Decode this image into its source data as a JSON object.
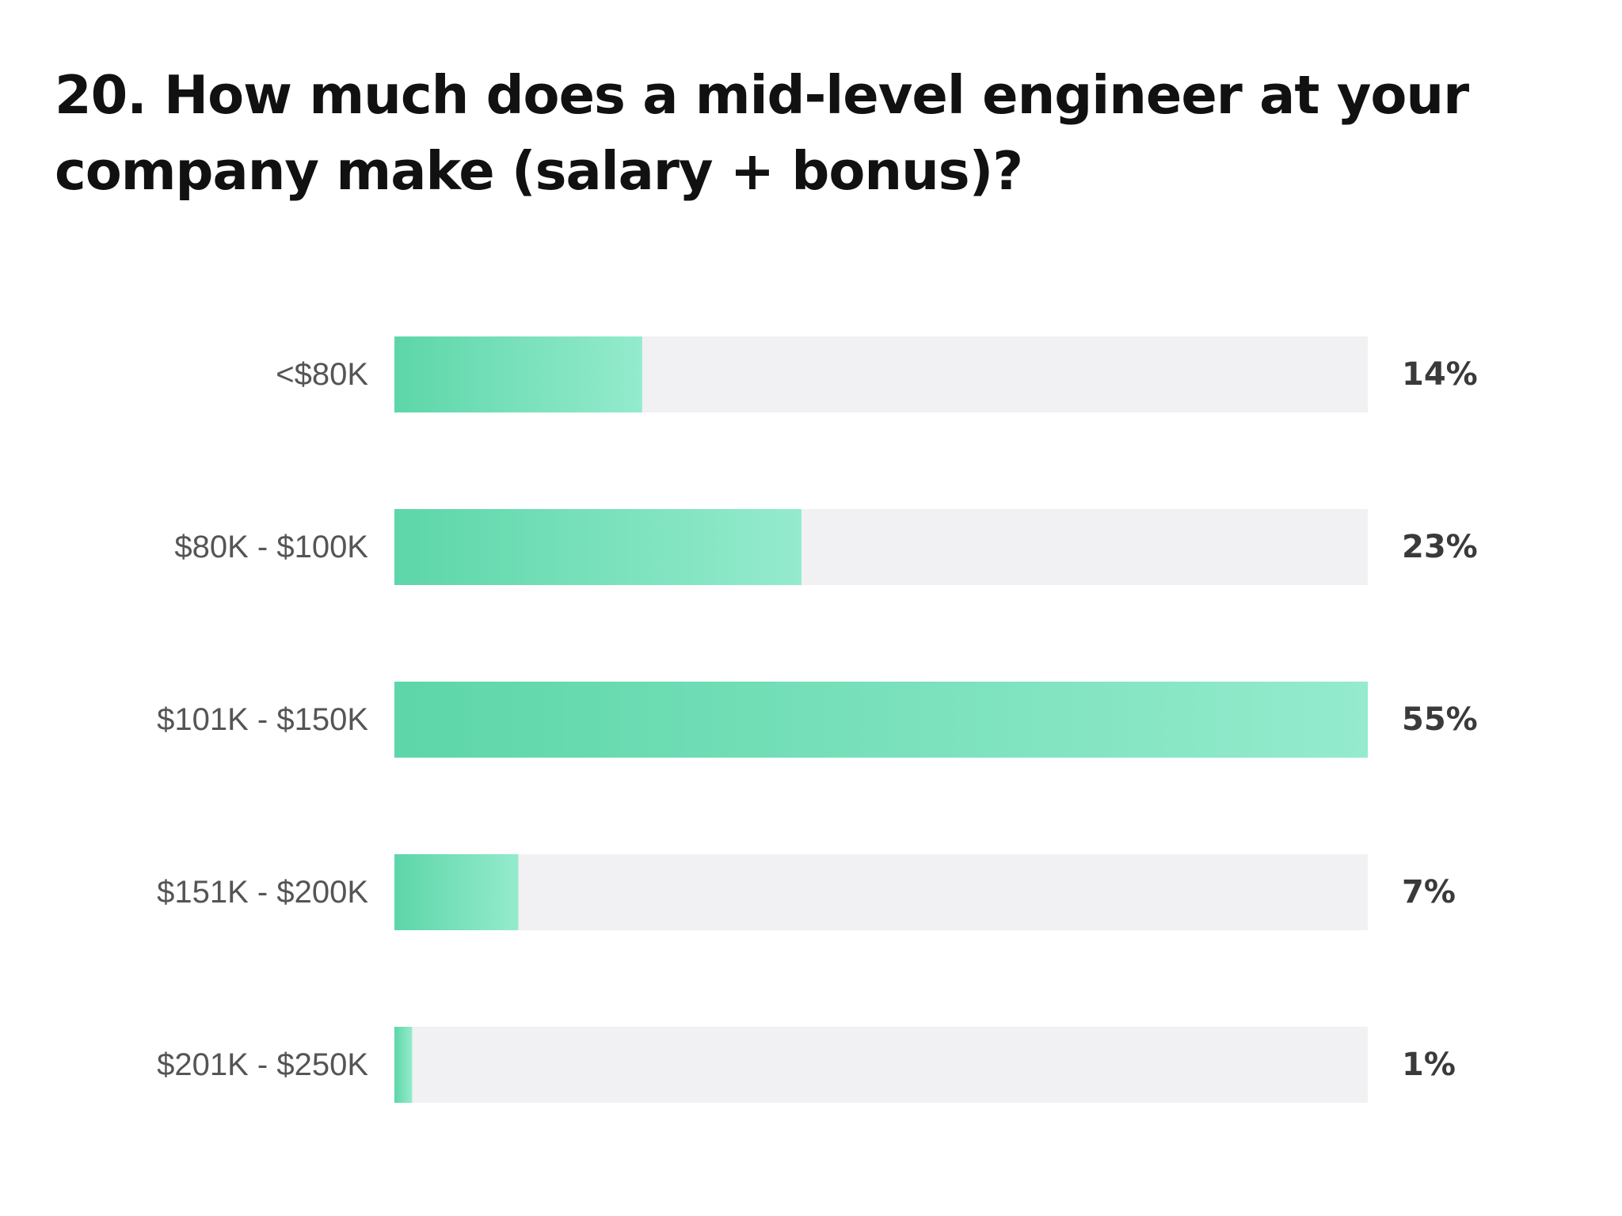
{
  "chart_data": {
    "type": "bar",
    "orientation": "horizontal",
    "title": "20. How much does a mid-level engineer at your company make (salary + bonus)?",
    "categories": [
      "<$80K",
      "$80K - $100K",
      "$101K - $150K",
      "$151K - $200K",
      "$201K - $250K"
    ],
    "values": [
      14,
      23,
      55,
      7,
      1
    ],
    "value_labels": [
      "14%",
      "23%",
      "55%",
      "7%",
      "1%"
    ],
    "xlim": [
      0,
      55
    ],
    "grid": false,
    "legend": "none",
    "colors": {
      "bar_start": "#5dd6a9",
      "bar_end": "#94ebcd",
      "track": "#f1f0f3",
      "category_text": "#555555",
      "value_text": "#3a3a3a"
    }
  }
}
